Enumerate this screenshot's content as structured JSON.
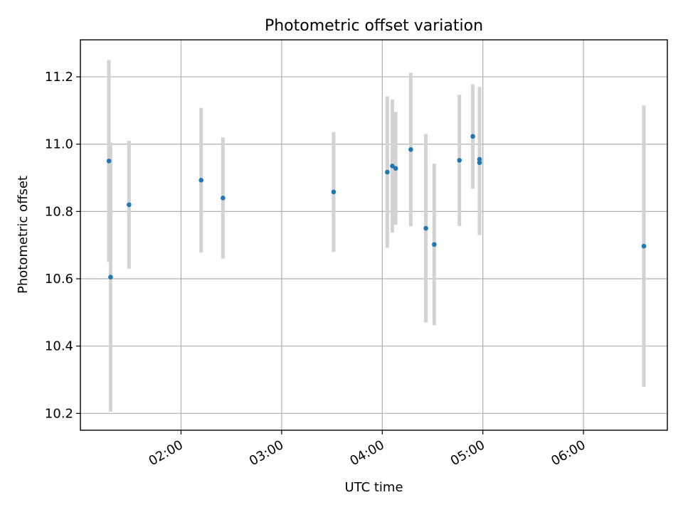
{
  "chart_data": {
    "type": "scatter",
    "title": "Photometric offset variation",
    "xlabel": "UTC time",
    "ylabel": "Photometric offset",
    "xlim": [
      "01:00",
      "06:50"
    ],
    "ylim": [
      10.15,
      11.31
    ],
    "x_ticks": [
      "02:00",
      "03:00",
      "04:00",
      "05:00",
      "06:00"
    ],
    "y_ticks": [
      "10.2",
      "10.4",
      "10.6",
      "10.8",
      "11.0",
      "11.2"
    ],
    "grid": true,
    "colors": {
      "point": "#1f77b4",
      "errorbar": "#d3d3d3"
    },
    "points": [
      {
        "x": "01:17",
        "y": 10.95,
        "err": 0.3
      },
      {
        "x": "01:18",
        "y": 10.605,
        "err": 0.4
      },
      {
        "x": "01:29",
        "y": 10.82,
        "err": 0.19
      },
      {
        "x": "02:12",
        "y": 10.893,
        "err": 0.215
      },
      {
        "x": "02:25",
        "y": 10.84,
        "err": 0.18
      },
      {
        "x": "03:31",
        "y": 10.858,
        "err": 0.178
      },
      {
        "x": "04:03",
        "y": 10.917,
        "err": 0.225
      },
      {
        "x": "04:06",
        "y": 10.935,
        "err": 0.198
      },
      {
        "x": "04:08",
        "y": 10.928,
        "err": 0.168
      },
      {
        "x": "04:17",
        "y": 10.984,
        "err": 0.228
      },
      {
        "x": "04:26",
        "y": 10.75,
        "err": 0.28
      },
      {
        "x": "04:31",
        "y": 10.702,
        "err": 0.24
      },
      {
        "x": "04:46",
        "y": 10.952,
        "err": 0.195
      },
      {
        "x": "04:54",
        "y": 11.023,
        "err": 0.155
      },
      {
        "x": "04:58",
        "y": 10.955,
        "err": 0.215
      },
      {
        "x": "04:58",
        "y": 10.945,
        "err": 0.215
      },
      {
        "x": "06:36",
        "y": 10.697,
        "err": 0.418
      }
    ]
  }
}
